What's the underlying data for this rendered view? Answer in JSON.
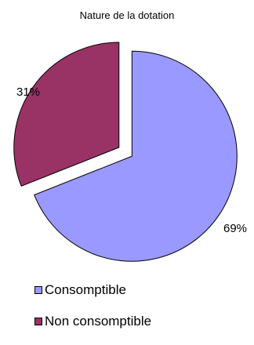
{
  "chart_data": {
    "type": "pie",
    "title": "Nature de la dotation",
    "exploded": true,
    "slices": [
      {
        "label": "Consomptible",
        "value": 69,
        "display": "69%",
        "color": "#9999ff"
      },
      {
        "label": "Non consomptible",
        "value": 31,
        "display": "31%",
        "color": "#993366"
      }
    ],
    "legend_position": "bottom-left",
    "border_color": "#000000"
  }
}
